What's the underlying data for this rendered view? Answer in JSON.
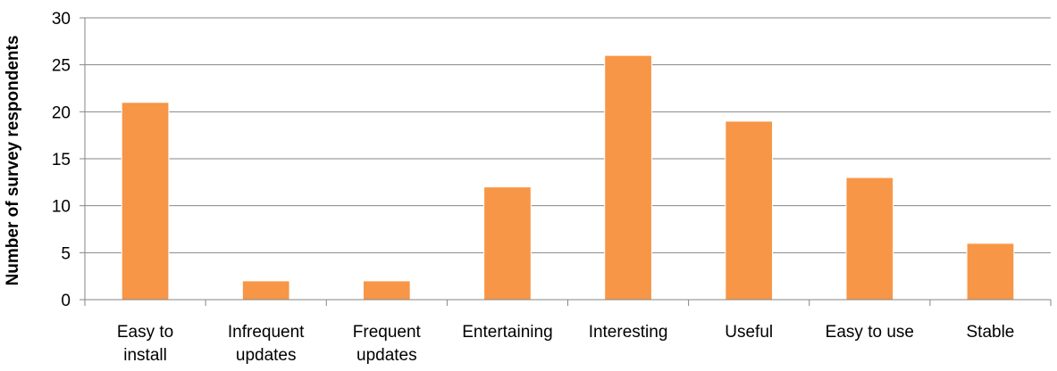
{
  "chart_data": {
    "type": "bar",
    "categories": [
      [
        "Easy to",
        "install"
      ],
      [
        "Infrequent",
        "updates"
      ],
      [
        "Frequent",
        "updates"
      ],
      [
        "Entertaining"
      ],
      [
        "Interesting"
      ],
      [
        "Useful"
      ],
      [
        "Easy to use"
      ],
      [
        "Stable"
      ]
    ],
    "values": [
      21,
      2,
      2,
      12,
      26,
      19,
      13,
      6
    ],
    "ylabel": "Number of survey respondents",
    "ylim": [
      0,
      30
    ],
    "yticks": [
      0,
      5,
      10,
      15,
      20,
      25,
      30
    ],
    "grid": true,
    "bar_color": "#F79646"
  }
}
